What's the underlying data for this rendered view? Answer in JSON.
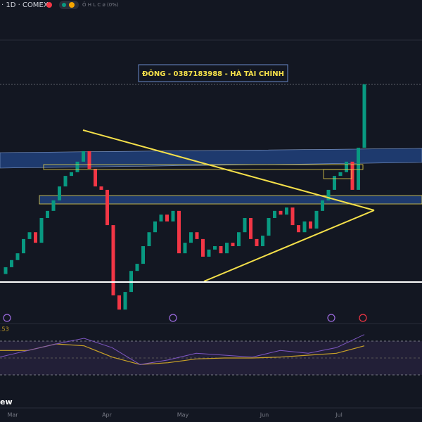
{
  "header": {
    "symbol": "· 1D · COMEX",
    "ohlc": "Ô H L C ø (0%)"
  },
  "annotation": "ĐÔNG - 0387183988 - HÀ TÀI CHÍNH",
  "rsi_label": ".53",
  "corner_text": "ew",
  "chart_data": {
    "type": "candlestick",
    "ylim": [
      0,
      100
    ],
    "up_color": "#089981",
    "down_color": "#f23645",
    "open": [
      16.0,
      18.2,
      20.5,
      22.7,
      27.3,
      29.5,
      26.1,
      34.1,
      36.4,
      39.8,
      44.3,
      47.7,
      48.9,
      52.3,
      55.7,
      50.0,
      44.3,
      43.2,
      31.8,
      9.1,
      4.5,
      10.2,
      17.0,
      19.3,
      25.0,
      29.5,
      33.0,
      35.2,
      33.0,
      36.4,
      22.7,
      26.1,
      29.5,
      27.3,
      21.6,
      23.9,
      25.0,
      22.7,
      26.1,
      25.0,
      29.5,
      34.1,
      27.3,
      25.0,
      28.4,
      34.1,
      36.4,
      35.2,
      37.5,
      31.8,
      29.5,
      33.0,
      30.7,
      36.4,
      39.8,
      43.2,
      47.7,
      48.9,
      52.3,
      43.2,
      56.8
    ],
    "close": [
      18.2,
      20.5,
      22.7,
      27.3,
      29.5,
      26.1,
      34.1,
      36.4,
      39.8,
      44.3,
      47.7,
      48.9,
      52.3,
      55.7,
      50.0,
      44.3,
      43.2,
      31.8,
      9.1,
      4.5,
      10.2,
      17.0,
      19.3,
      25.0,
      29.5,
      33.0,
      35.2,
      33.0,
      36.4,
      22.7,
      26.1,
      29.5,
      27.3,
      21.6,
      23.9,
      25.0,
      22.7,
      26.1,
      25.0,
      29.5,
      34.1,
      27.3,
      25.0,
      28.4,
      34.1,
      36.4,
      35.2,
      37.5,
      31.8,
      29.5,
      33.0,
      30.7,
      36.4,
      39.8,
      43.2,
      47.7,
      48.9,
      52.3,
      43.2,
      56.8,
      77.3
    ],
    "months": [
      "Mar",
      "Apr",
      "May",
      "Jun",
      "Jul"
    ],
    "rsi": {
      "ylim": [
        20,
        80
      ],
      "color": "#7e57c2",
      "ma_color": "#c9a227",
      "values": [
        48,
        55,
        62,
        68,
        58,
        40,
        45,
        52,
        50,
        48,
        55,
        52,
        58,
        72
      ],
      "ma": [
        55,
        55,
        62,
        60,
        48,
        40,
        42,
        46,
        47,
        47,
        48,
        50,
        52,
        60
      ]
    }
  }
}
